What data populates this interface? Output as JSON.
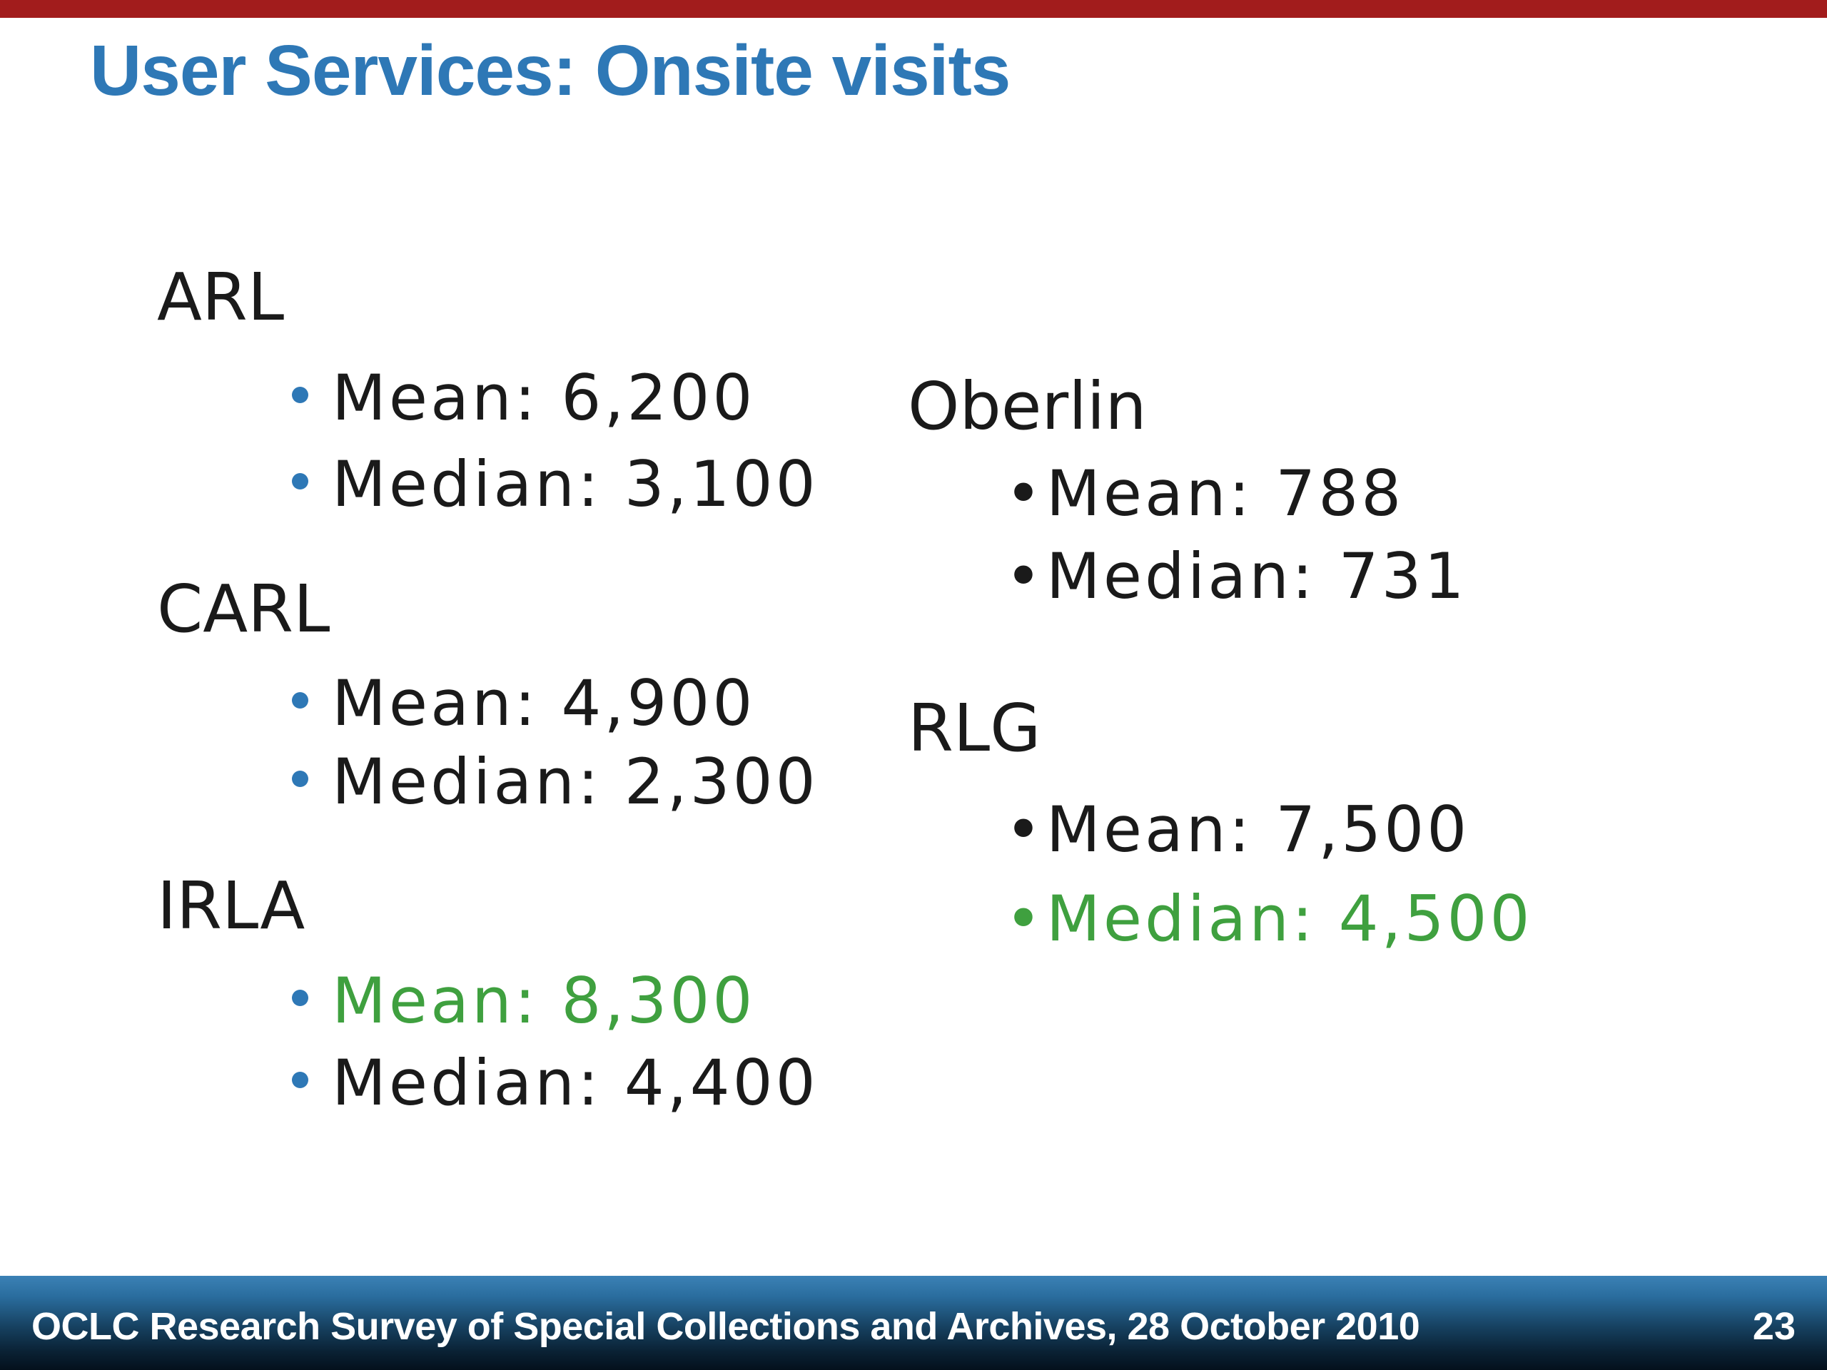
{
  "title": "User Services: Onsite visits",
  "bullet_char": "•",
  "colors": {
    "top_bar": "#A21C1C",
    "title": "#2E78B6",
    "bullet": "#2E78B6",
    "text": "#1A1A1A",
    "green": "#3FA03F",
    "footer_text": "#FFFFFF",
    "footer_gradient_top": "#3B81B5",
    "footer_gradient_bottom": "#04101C"
  },
  "columns": {
    "left": {
      "groups": [
        {
          "heading": "ARL",
          "items": [
            {
              "label": "Mean: 6,200",
              "color": "#1A1A1A"
            },
            {
              "label": "Median: 3,100",
              "color": "#1A1A1A"
            }
          ]
        },
        {
          "heading": "CARL",
          "items": [
            {
              "label": "Mean: 4,900",
              "color": "#1A1A1A"
            },
            {
              "label": "Median: 2,300",
              "color": "#1A1A1A"
            }
          ]
        },
        {
          "heading": "IRLA",
          "items": [
            {
              "label": "Mean: 8,300",
              "color": "#3FA03F"
            },
            {
              "label": "Median: 4,400",
              "color": "#1A1A1A"
            }
          ]
        }
      ]
    },
    "right": {
      "groups": [
        {
          "heading": "Oberlin",
          "items": [
            {
              "label": "Mean: 788",
              "color": "#1A1A1A"
            },
            {
              "label": "Median: 731",
              "color": "#1A1A1A"
            }
          ]
        },
        {
          "heading": "RLG",
          "items": [
            {
              "label": "Mean: 7,500",
              "color": "#1A1A1A"
            },
            {
              "label": "Median: 4,500",
              "color": "#3FA03F"
            }
          ]
        }
      ]
    }
  },
  "footer": {
    "text": "OCLC Research Survey of Special Collections and Archives, 28 October 2010",
    "page_number": "23"
  }
}
